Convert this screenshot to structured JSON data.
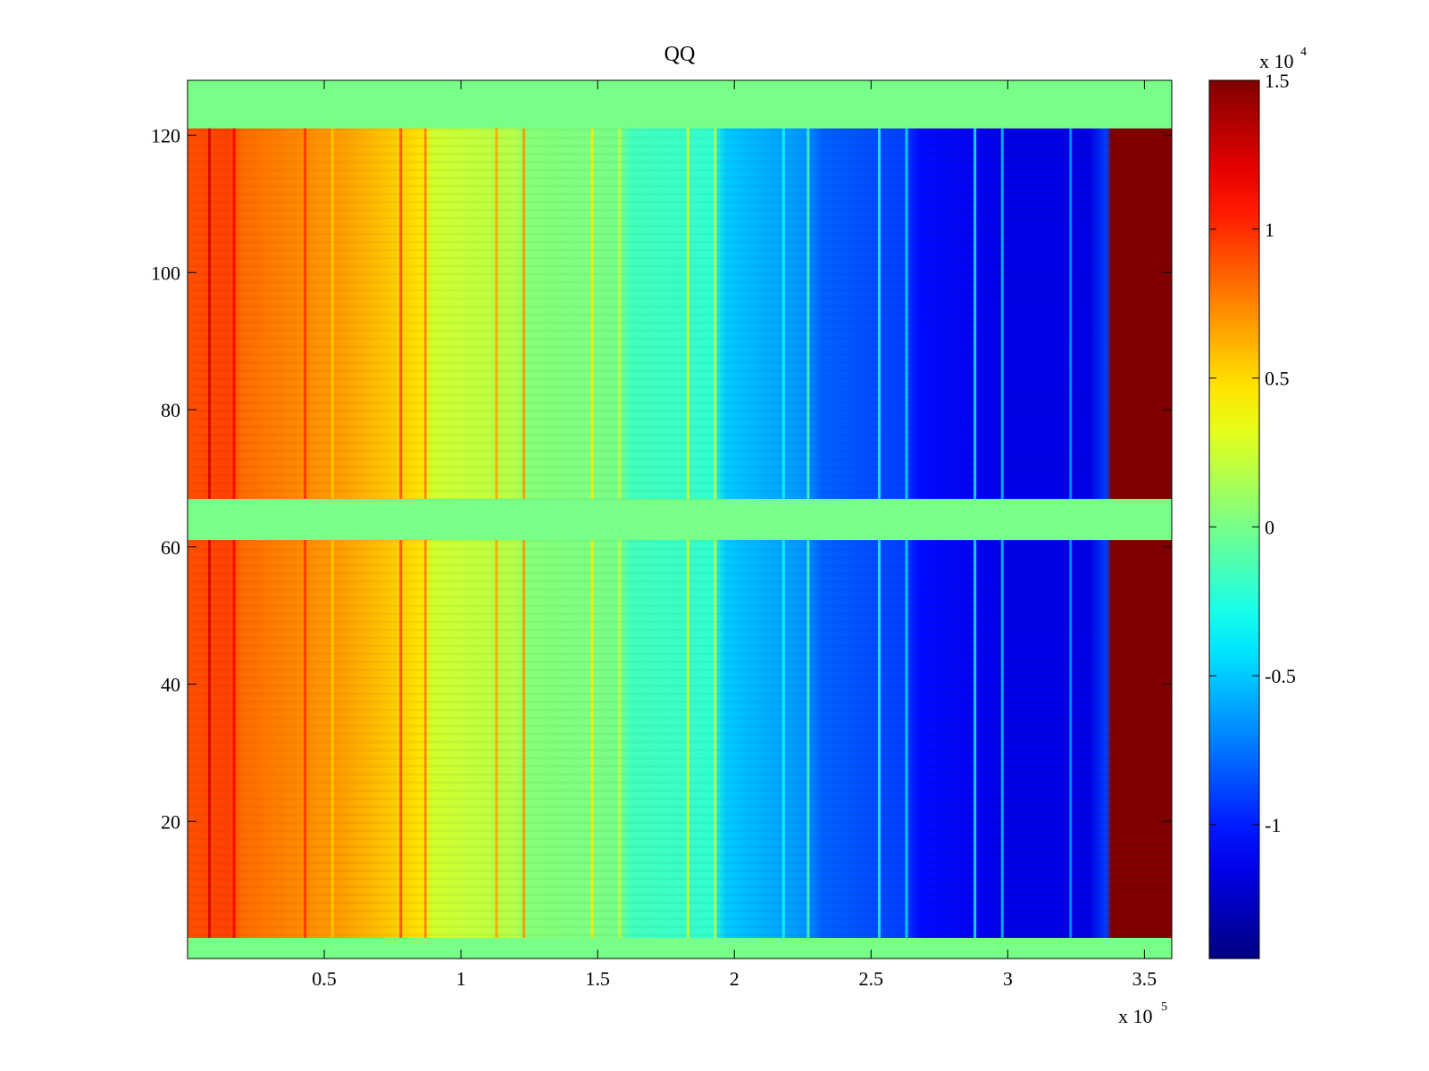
{
  "chart_data": {
    "type": "heatmap",
    "title": "QQ",
    "xlabel": "",
    "ylabel": "",
    "x_range": [
      0,
      360000
    ],
    "y_range": [
      0,
      128
    ],
    "x_ticks": [
      {
        "value": 50000,
        "label": "0.5"
      },
      {
        "value": 100000,
        "label": "1"
      },
      {
        "value": 150000,
        "label": "1.5"
      },
      {
        "value": 200000,
        "label": "2"
      },
      {
        "value": 250000,
        "label": "2.5"
      },
      {
        "value": 300000,
        "label": "3"
      },
      {
        "value": 350000,
        "label": "3.5"
      }
    ],
    "y_ticks": [
      {
        "value": 20,
        "label": "20"
      },
      {
        "value": 40,
        "label": "40"
      },
      {
        "value": 60,
        "label": "60"
      },
      {
        "value": 80,
        "label": "80"
      },
      {
        "value": 100,
        "label": "100"
      },
      {
        "value": 120,
        "label": "120"
      }
    ],
    "x_multiplier": {
      "base": "x 10",
      "exponent": "5"
    },
    "colorbar": {
      "colormap": "jet",
      "range": [
        -14500,
        15000
      ],
      "ticks": [
        {
          "value": -10000,
          "label": "-1"
        },
        {
          "value": -5000,
          "label": "-0.5"
        },
        {
          "value": 0,
          "label": "0"
        },
        {
          "value": 5000,
          "label": "0.5"
        },
        {
          "value": 10000,
          "label": "1"
        },
        {
          "value": 15000,
          "label": "1.5"
        }
      ],
      "multiplier": {
        "base": "x 10",
        "exponent": "4"
      }
    },
    "row_bands": [
      {
        "y_from": 0,
        "y_to": 3,
        "filled": false
      },
      {
        "y_from": 3,
        "y_to": 61,
        "filled": true
      },
      {
        "y_from": 61,
        "y_to": 67,
        "filled": false
      },
      {
        "y_from": 67,
        "y_to": 121,
        "filled": true
      },
      {
        "y_from": 121,
        "y_to": 128,
        "filled": false
      }
    ],
    "column_profile": [
      {
        "x": 0,
        "value": 9000
      },
      {
        "x": 15000,
        "value": 9500
      },
      {
        "x": 20000,
        "value": 8200
      },
      {
        "x": 55000,
        "value": 6800
      },
      {
        "x": 85000,
        "value": 4800
      },
      {
        "x": 90000,
        "value": 2600
      },
      {
        "x": 120000,
        "value": 1800
      },
      {
        "x": 125000,
        "value": 500
      },
      {
        "x": 158000,
        "value": 0
      },
      {
        "x": 162000,
        "value": -1500
      },
      {
        "x": 192000,
        "value": -2000
      },
      {
        "x": 197000,
        "value": -5000
      },
      {
        "x": 226000,
        "value": -6500
      },
      {
        "x": 232000,
        "value": -8000
      },
      {
        "x": 262000,
        "value": -9000
      },
      {
        "x": 268000,
        "value": -10500
      },
      {
        "x": 300000,
        "value": -11500
      },
      {
        "x": 330000,
        "value": -11500
      },
      {
        "x": 336000,
        "value": -9000
      },
      {
        "x": 338000,
        "value": 15000
      },
      {
        "x": 360000,
        "value": 15000
      }
    ],
    "stripe_lines": [
      {
        "x": 8000,
        "value": 12500
      },
      {
        "x": 17000,
        "value": 11500
      },
      {
        "x": 43000,
        "value": 10000
      },
      {
        "x": 53000,
        "value": 5500
      },
      {
        "x": 78000,
        "value": 9000
      },
      {
        "x": 87000,
        "value": 7500
      },
      {
        "x": 113000,
        "value": 6500
      },
      {
        "x": 123000,
        "value": 7000
      },
      {
        "x": 148000,
        "value": 4500
      },
      {
        "x": 158000,
        "value": 2500
      },
      {
        "x": 183000,
        "value": 3500
      },
      {
        "x": 193000,
        "value": 2500
      },
      {
        "x": 218000,
        "value": -3000
      },
      {
        "x": 227000,
        "value": -1500
      },
      {
        "x": 253000,
        "value": -2500
      },
      {
        "x": 263000,
        "value": -4000
      },
      {
        "x": 288000,
        "value": -3500
      },
      {
        "x": 298000,
        "value": -5000
      },
      {
        "x": 323000,
        "value": -6000
      }
    ]
  }
}
